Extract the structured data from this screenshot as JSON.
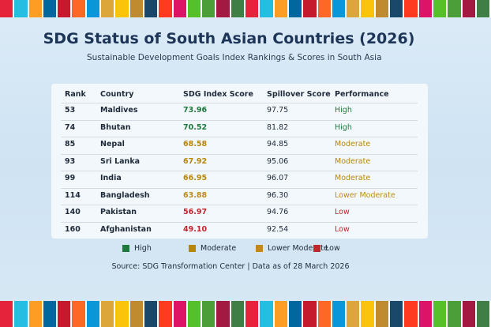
{
  "header": {
    "title": "SDG Status of South Asian Countries (2026)",
    "subtitle": "Sustainable Development Goals Index Rankings & Scores in South Asia"
  },
  "table": {
    "columns": [
      "Rank",
      "Country",
      "SDG Index Score",
      "Spillover Score",
      "Performance"
    ],
    "rows": [
      [
        "53",
        "Maldives",
        "73.96",
        "97.75",
        "High"
      ],
      [
        "74",
        "Bhutan",
        "70.52",
        "81.82",
        "High"
      ],
      [
        "85",
        "Nepal",
        "68.58",
        "94.85",
        "Moderate"
      ],
      [
        "93",
        "Sri Lanka",
        "67.92",
        "95.06",
        "Moderate"
      ],
      [
        "99",
        "India",
        "66.95",
        "96.07",
        "Moderate"
      ],
      [
        "114",
        "Bangladesh",
        "63.88",
        "96.30",
        "Lower Moderate"
      ],
      [
        "140",
        "Pakistan",
        "56.97",
        "94.76",
        "Low"
      ],
      [
        "160",
        "Afghanistan",
        "49.10",
        "92.54",
        "Low"
      ]
    ]
  },
  "legend": [
    {
      "label": "High",
      "color": "#1e7a3c"
    },
    {
      "label": "Moderate",
      "color": "#b8860b"
    },
    {
      "label": "Lower Moderate",
      "color": "#c08a1a"
    },
    {
      "label": "Low",
      "color": "#c0262d"
    }
  ],
  "source": "Source: SDG Transformation Center | Data as of 28 March 2026"
}
